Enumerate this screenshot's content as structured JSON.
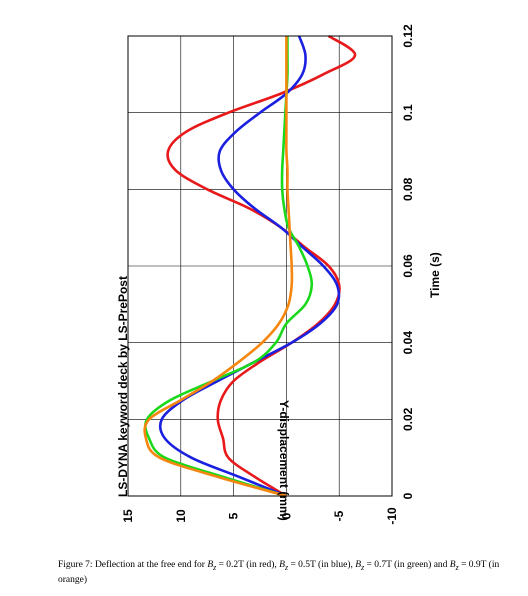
{
  "caption": {
    "part1": "Figure 7: Deflection at the free end for ",
    "b1": "B",
    "sub": "z",
    "part2": " = 0.2T (in red), ",
    "part3": " = 0.5T (in blue), ",
    "part4": " = 0.7T (in green) and ",
    "part5": " = 0.9T (in orange)"
  },
  "chart_data": {
    "type": "line",
    "orientation": "rotated-90",
    "title": "LS-DYNA keyword deck by LS-PrePost",
    "xlabel": "Time (s)",
    "ylabel": "Y-displacement (mm)",
    "xlim": [
      0,
      0.12
    ],
    "ylim": [
      -10,
      15
    ],
    "x_ticks": [
      "0",
      "0.02",
      "0.04",
      "0.06",
      "0.08",
      "0.1",
      "0.12"
    ],
    "y_ticks": [
      "15",
      "10",
      "5",
      "0",
      "-5",
      "-10"
    ],
    "grid": true,
    "series": [
      {
        "color": "#e8191a",
        "x": [
          0,
          0.005,
          0.01,
          0.015,
          0.02,
          0.025,
          0.03,
          0.035,
          0.04,
          0.045,
          0.05,
          0.055,
          0.06,
          0.065,
          0.07,
          0.075,
          0.08,
          0.085,
          0.09,
          0.095,
          0.1,
          0.105,
          0.11,
          0.115,
          0.12
        ],
        "y": [
          0,
          3,
          5.5,
          6,
          6.5,
          6.2,
          5,
          2.5,
          -0.5,
          -3,
          -4.6,
          -5,
          -4,
          -1.7,
          0.5,
          3.5,
          7.5,
          10.5,
          11.2,
          9.5,
          5.5,
          0.5,
          -3.5,
          -6.5,
          -4
        ]
      },
      {
        "color": "#1a1fe0",
        "x": [
          0,
          0.005,
          0.01,
          0.015,
          0.02,
          0.025,
          0.03,
          0.035,
          0.04,
          0.045,
          0.05,
          0.055,
          0.06,
          0.065,
          0.07,
          0.075,
          0.08,
          0.085,
          0.09,
          0.095,
          0.1,
          0.105,
          0.11,
          0.115,
          0.12
        ],
        "y": [
          0,
          4.5,
          9,
          11.5,
          11.8,
          9.8,
          6.5,
          3,
          -0.5,
          -3.2,
          -4.8,
          -4.8,
          -3.5,
          -1.5,
          0.5,
          3,
          5,
          6.2,
          6.3,
          4.8,
          2.5,
          0,
          -1.5,
          -1.8,
          -1.2
        ]
      },
      {
        "color": "#1ad81a",
        "x": [
          0,
          0.005,
          0.01,
          0.015,
          0.02,
          0.025,
          0.03,
          0.035,
          0.04,
          0.045,
          0.05,
          0.055,
          0.06,
          0.065,
          0.07,
          0.075,
          0.08,
          0.085,
          0.09,
          0.095,
          0.1,
          0.105,
          0.11,
          0.115,
          0.12
        ],
        "y": [
          0,
          6,
          11.5,
          13,
          13.2,
          11,
          7,
          3,
          1,
          0,
          -1.8,
          -2.4,
          -2.0,
          -1.2,
          -0.2,
          0.2,
          0.4,
          0.4,
          0.3,
          0.2,
          0.1,
          0,
          -0.1,
          -0.1,
          -0.1
        ]
      },
      {
        "color": "#f5860f",
        "x": [
          0,
          0.005,
          0.01,
          0.015,
          0.02,
          0.025,
          0.03,
          0.035,
          0.04,
          0.045,
          0.05,
          0.055,
          0.06,
          0.065,
          0.07,
          0.075,
          0.08,
          0.085,
          0.09,
          0.095,
          0.1,
          0.105,
          0.11,
          0.115,
          0.12
        ],
        "y": [
          0,
          6.5,
          12,
          13.3,
          13,
          10,
          7,
          4.5,
          2.3,
          0.7,
          -0.2,
          -0.5,
          -0.5,
          -0.4,
          -0.3,
          -0.2,
          -0.1,
          -0.1,
          0,
          0,
          0,
          0,
          0,
          0,
          0
        ]
      }
    ]
  }
}
